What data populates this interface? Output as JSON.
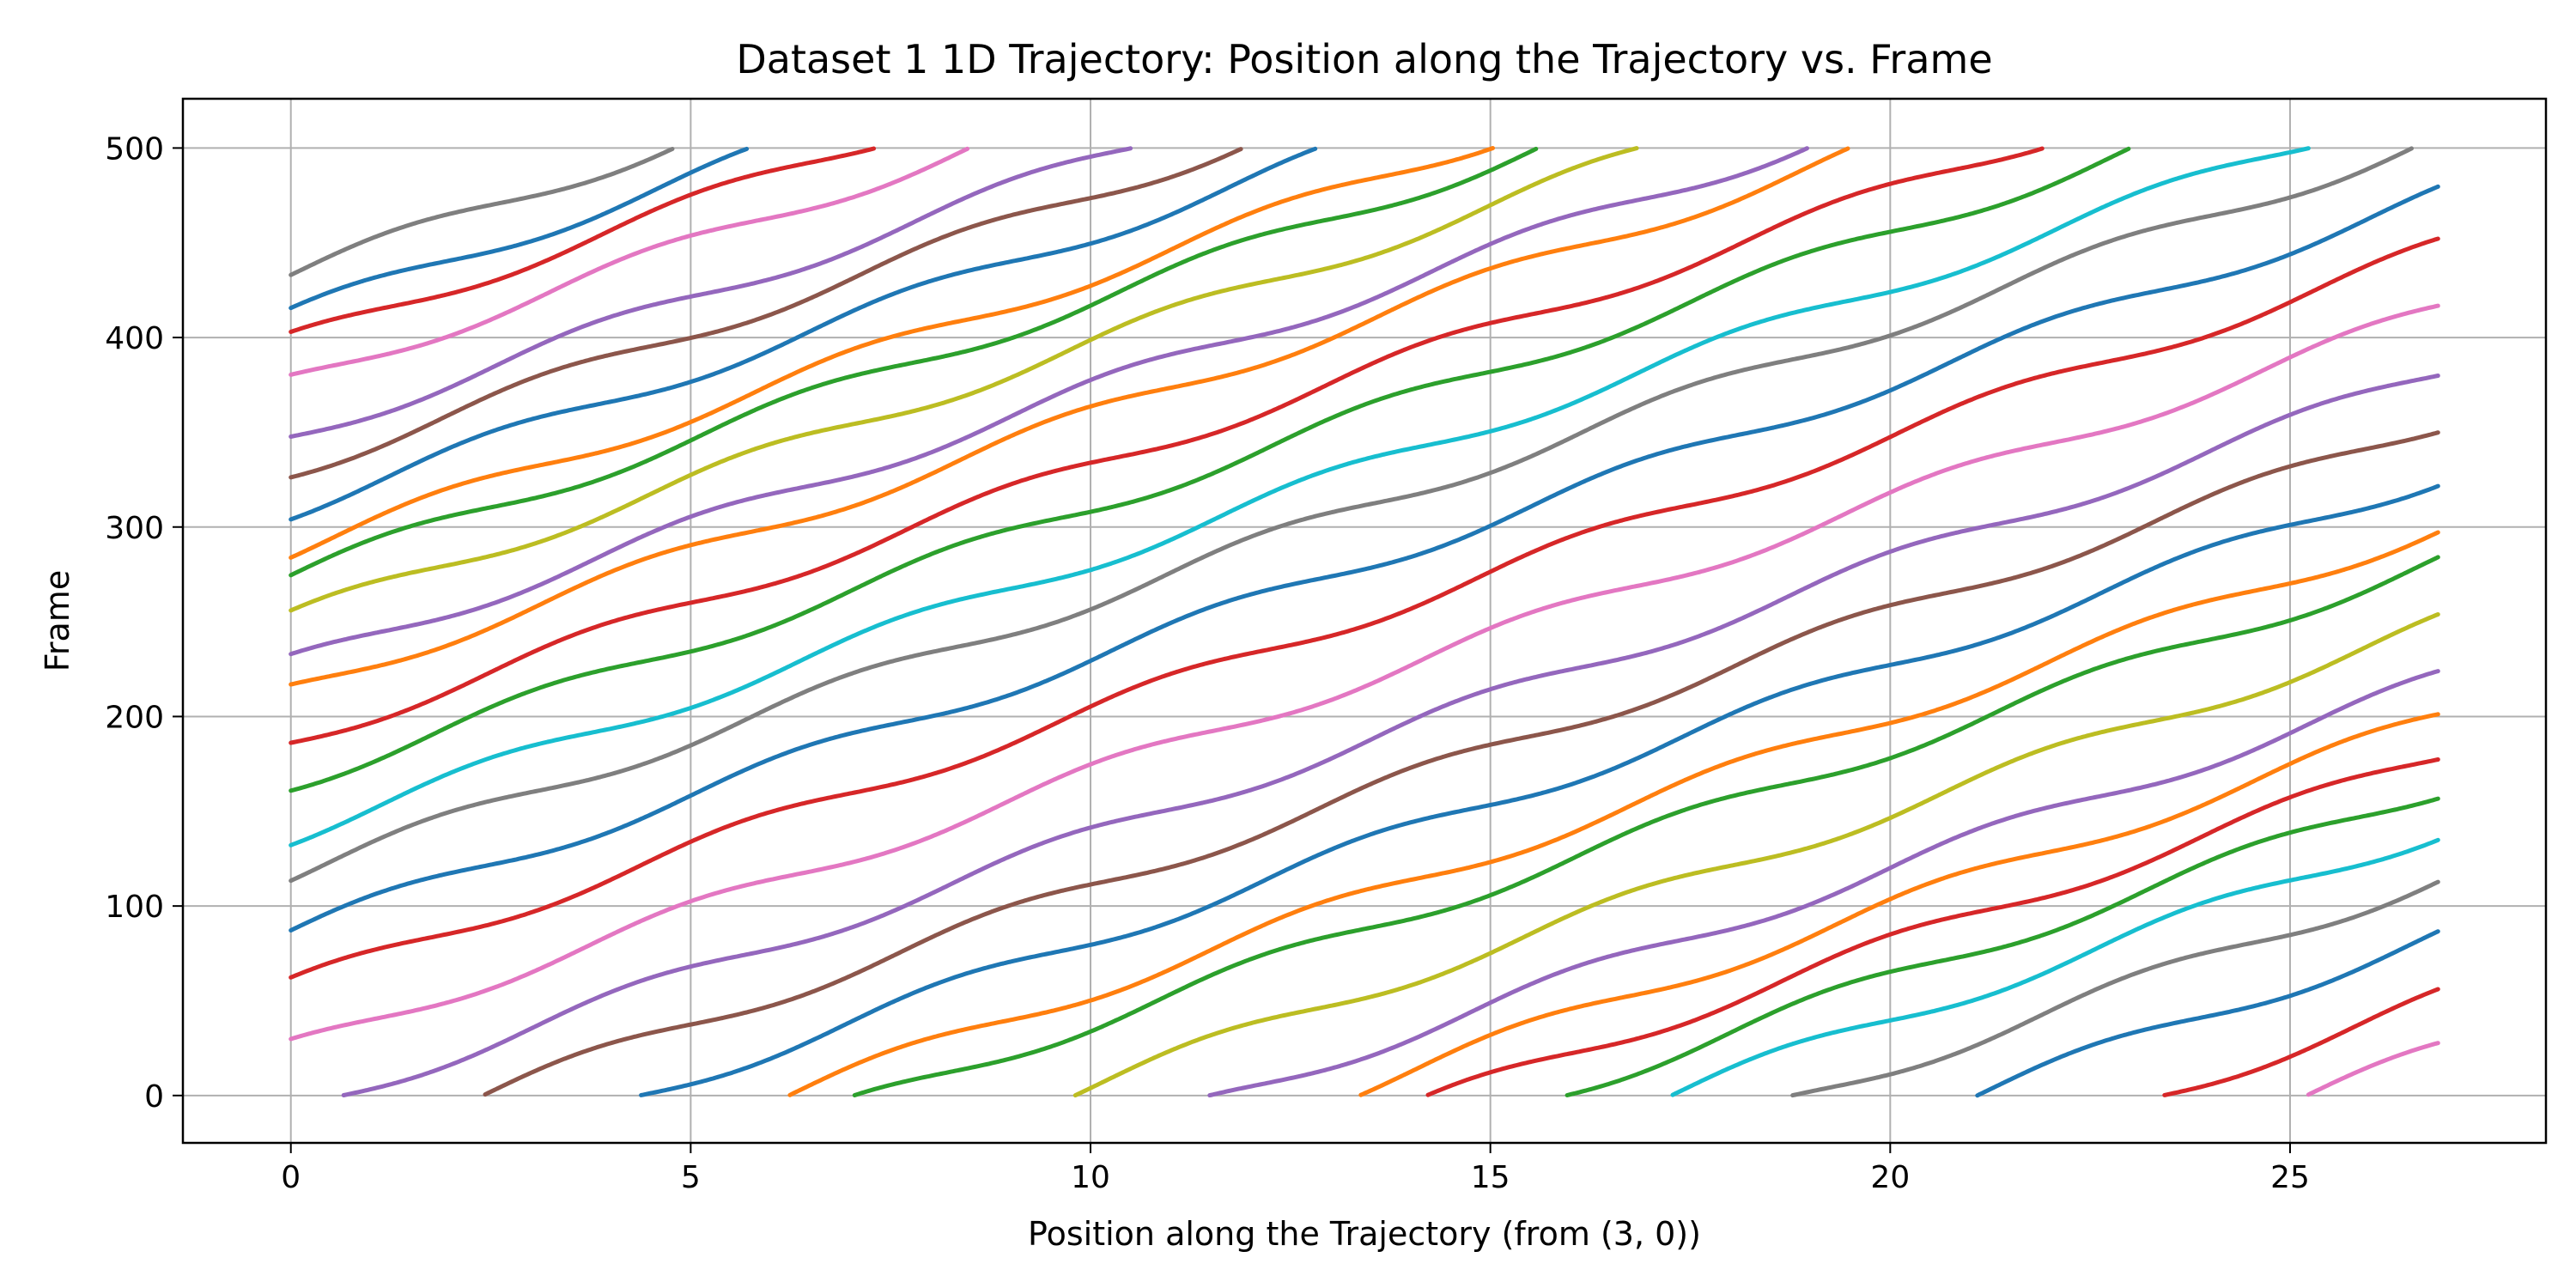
{
  "chart_data": {
    "type": "line",
    "title": "Dataset 1 1D Trajectory: Position along the Trajectory vs. Frame",
    "xlabel": "Position along the Trajectory (from (3, 0))",
    "ylabel": "Frame",
    "xlim": [
      -1.35,
      28.2
    ],
    "ylim": [
      -25,
      526
    ],
    "xticks": [
      0,
      5,
      10,
      15,
      20,
      25
    ],
    "yticks": [
      0,
      100,
      200,
      300,
      400,
      500
    ],
    "grid": true,
    "legend": "none",
    "x_range": [
      0,
      26.85
    ],
    "frame_range": [
      0,
      500
    ],
    "slope_frames_per_unit": 14.5,
    "series": [
      {
        "color": "#7f7f7f",
        "start_frame": 433
      },
      {
        "color": "#1f77b4",
        "start_frame": 412
      },
      {
        "color": "#d62728",
        "start_frame": 398
      },
      {
        "color": "#e377c2",
        "start_frame": 377
      },
      {
        "color": "#9467bd",
        "start_frame": 348
      },
      {
        "color": "#8c564b",
        "start_frame": 330
      },
      {
        "color": "#1f77b4",
        "start_frame": 309
      },
      {
        "color": "#ff7f0e",
        "start_frame": 287
      },
      {
        "color": "#2ca02c",
        "start_frame": 274
      },
      {
        "color": "#bcbd22",
        "start_frame": 252
      },
      {
        "color": "#9467bd",
        "start_frame": 228
      },
      {
        "color": "#ff7f0e",
        "start_frame": 214
      },
      {
        "color": "#d62728",
        "start_frame": 187
      },
      {
        "color": "#2ca02c",
        "start_frame": 165
      },
      {
        "color": "#17becf",
        "start_frame": 137
      },
      {
        "color": "#7f7f7f",
        "start_frame": 116
      },
      {
        "color": "#1f77b4",
        "start_frame": 86
      },
      {
        "color": "#d62728",
        "start_frame": 58
      },
      {
        "color": "#e377c2",
        "start_frame": 25
      },
      {
        "color": "#9467bd",
        "start_frame": -8
      },
      {
        "color": "#8c564b",
        "start_frame": -35
      },
      {
        "color": "#1f77b4",
        "start_frame": -63
      },
      {
        "color": "#ff7f0e",
        "start_frame": -90
      },
      {
        "color": "#2ca02c",
        "start_frame": -107
      },
      {
        "color": "#bcbd22",
        "start_frame": -140
      },
      {
        "color": "#9467bd",
        "start_frame": -170
      },
      {
        "color": "#ff7f0e",
        "start_frame": -190
      },
      {
        "color": "#d62728",
        "start_frame": -210
      },
      {
        "color": "#2ca02c",
        "start_frame": -228
      },
      {
        "color": "#17becf",
        "start_frame": -250
      },
      {
        "color": "#7f7f7f",
        "start_frame": -275
      },
      {
        "color": "#1f77b4",
        "start_frame": -305
      },
      {
        "color": "#d62728",
        "start_frame": -338
      },
      {
        "color": "#e377c2",
        "start_frame": -366
      }
    ]
  }
}
